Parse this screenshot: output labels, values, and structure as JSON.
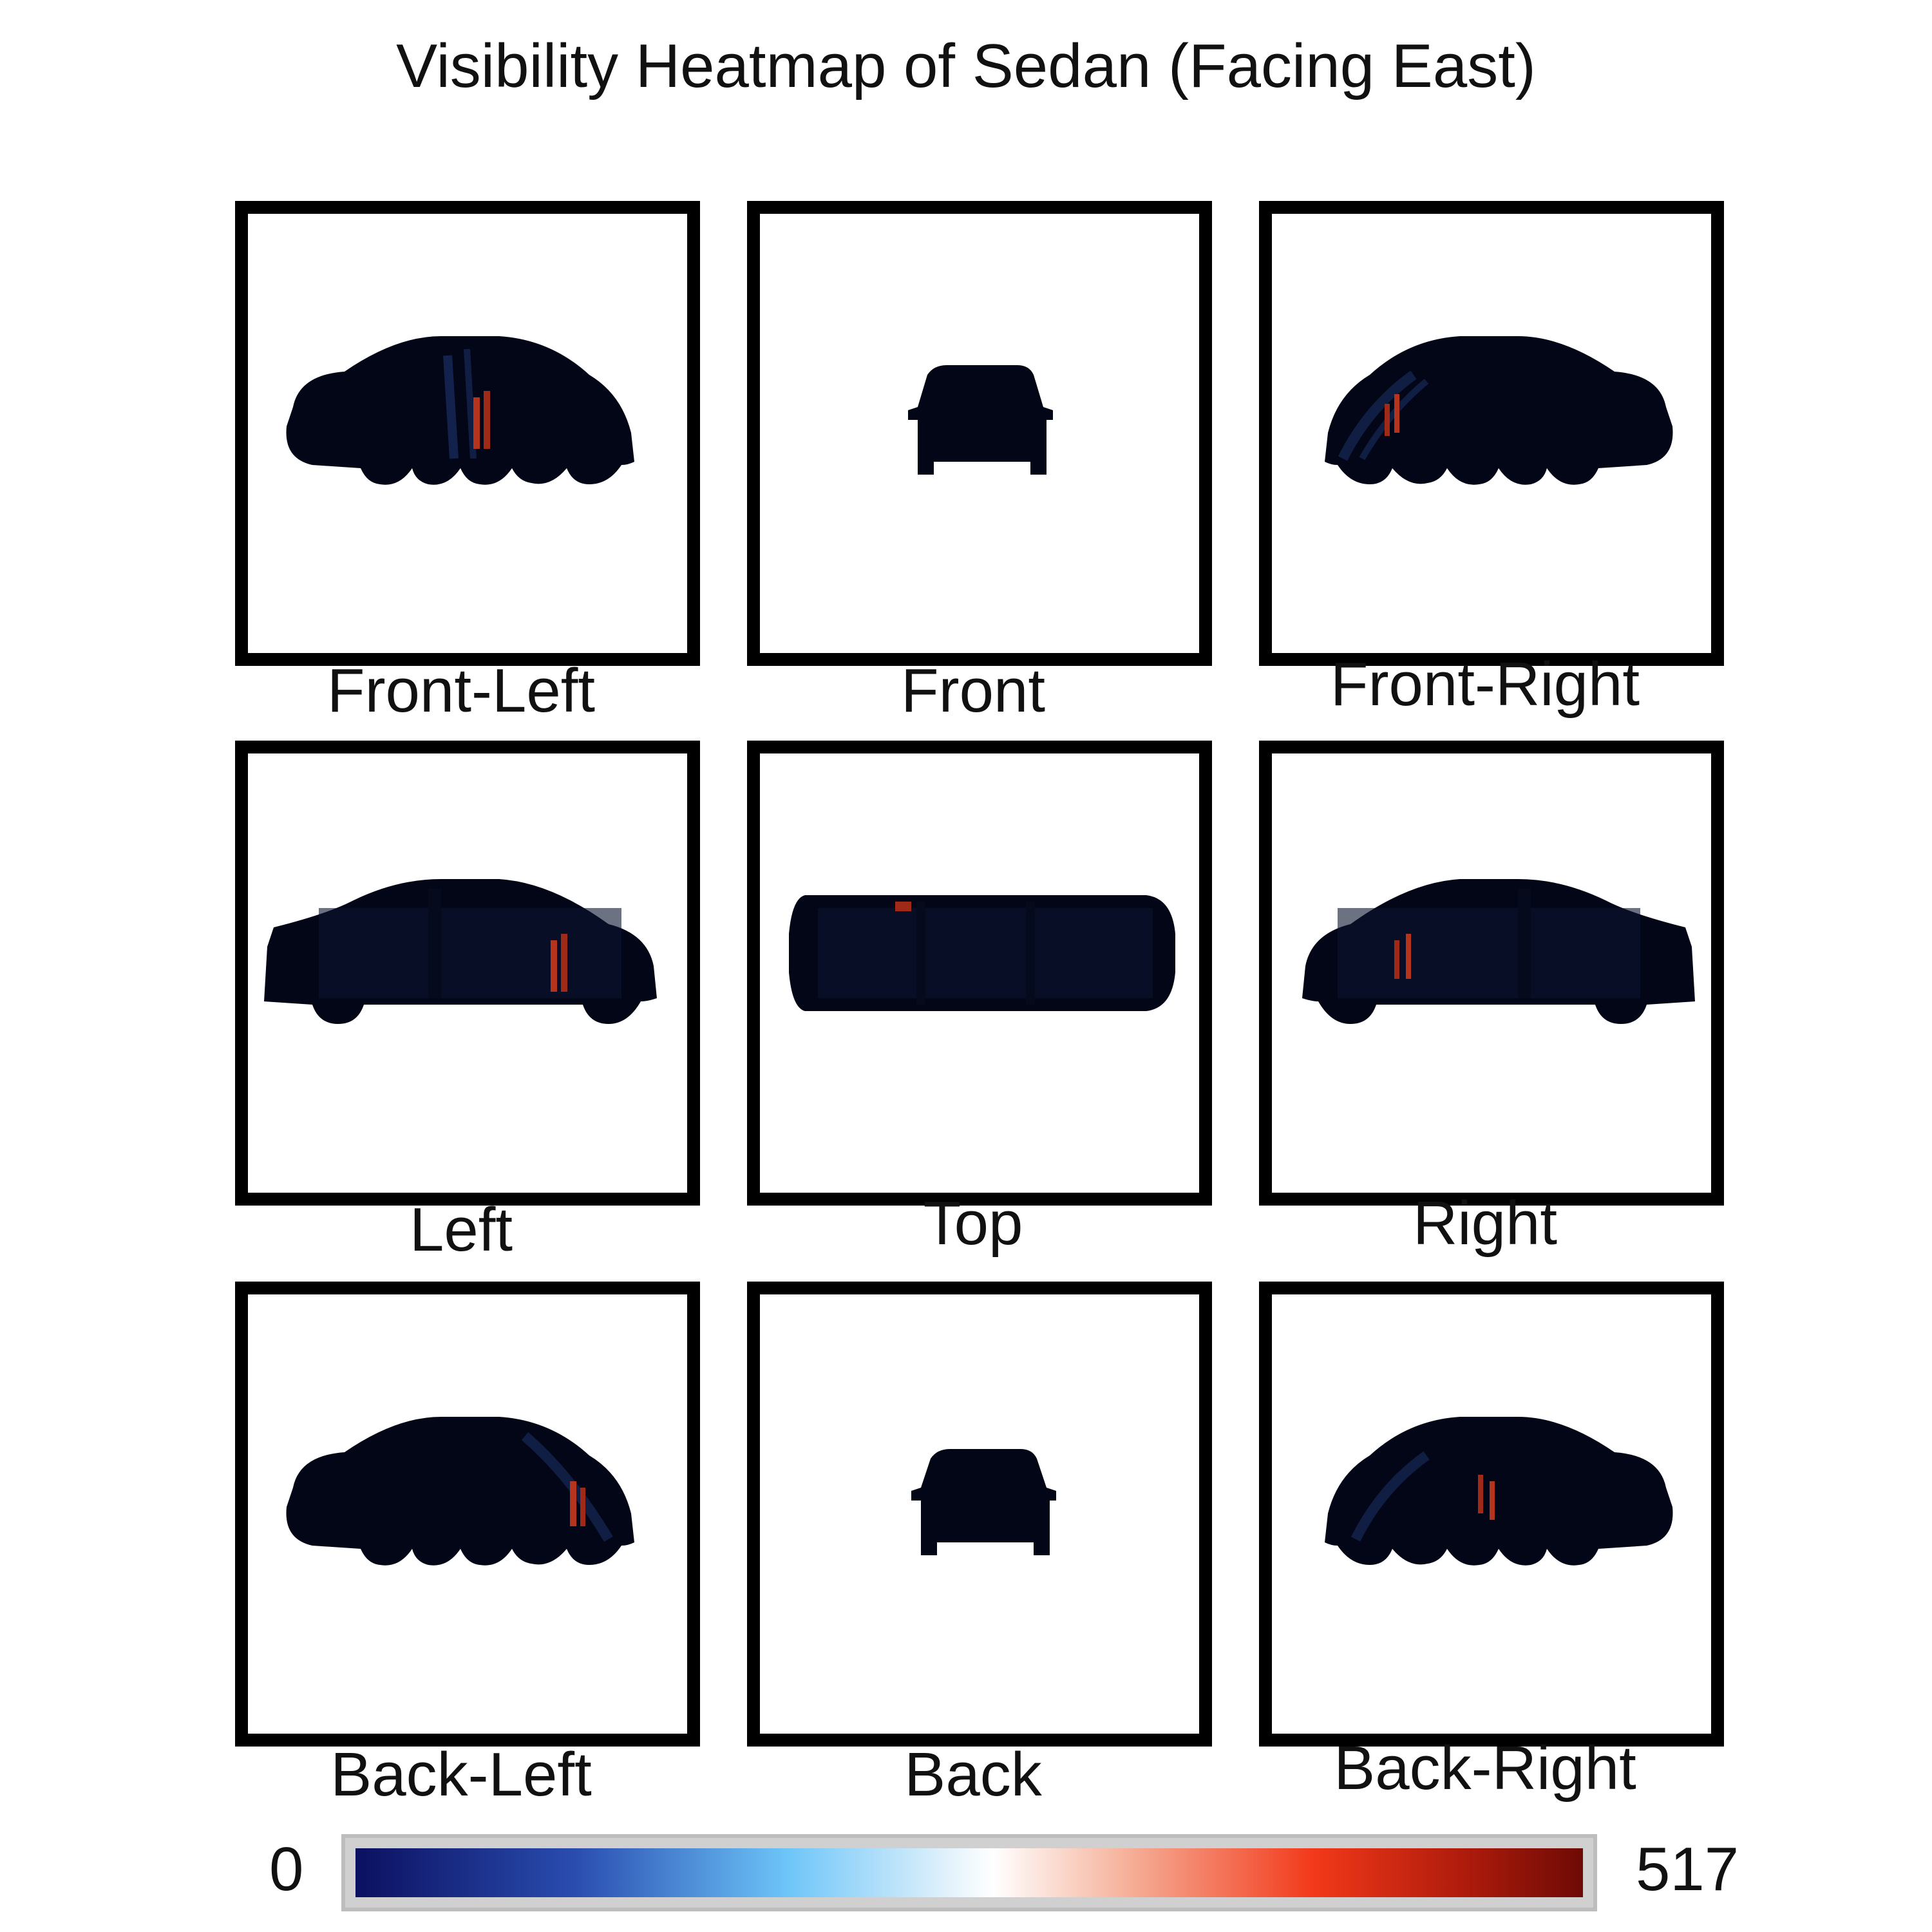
{
  "chart_data": {
    "type": "heatmap",
    "title": "Visibility Heatmap of Sedan (Facing East)",
    "views": [
      "Front-Left",
      "Front",
      "Front-Right",
      "Left",
      "Top",
      "Right",
      "Back-Left",
      "Back",
      "Back-Right"
    ],
    "colorbar": {
      "min": 0,
      "max": 517,
      "min_label": "0",
      "max_label": "517"
    },
    "colors": {
      "low": "#0b1060",
      "mid_low": "#6cc4f8",
      "mid": "#ffffff",
      "mid_high": "#f2391a",
      "high": "#6e0a05",
      "body": "#030617"
    }
  }
}
